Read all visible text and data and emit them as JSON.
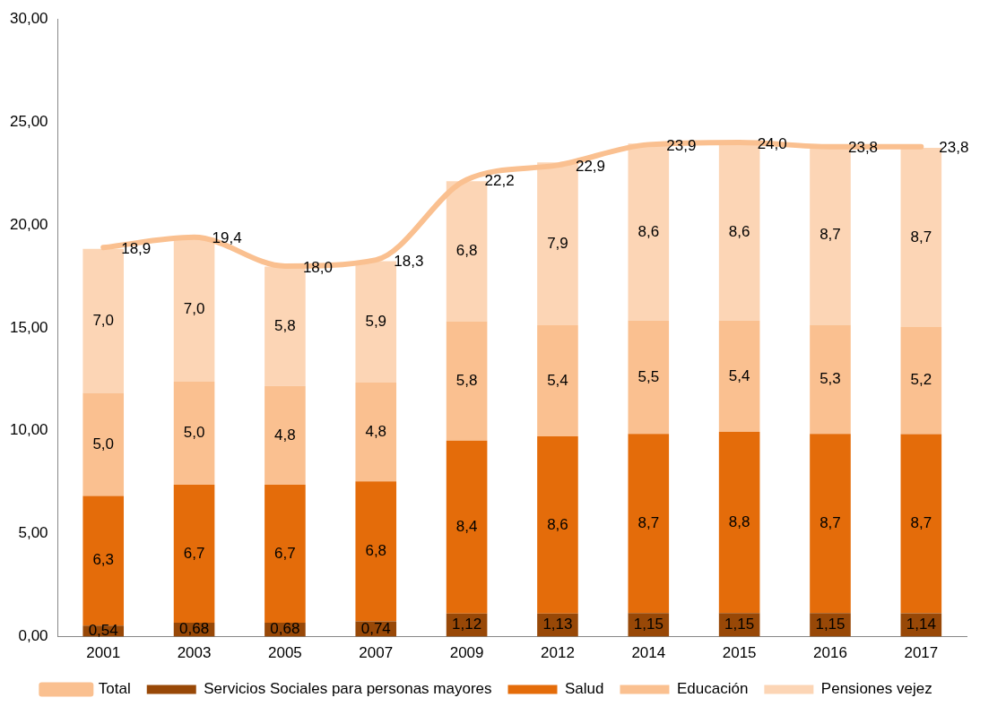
{
  "chart_data": {
    "type": "bar",
    "stacked": true,
    "categories": [
      "2001",
      "2003",
      "2005",
      "2007",
      "2009",
      "2012",
      "2014",
      "2015",
      "2016",
      "2017"
    ],
    "series": [
      {
        "name": "Servicios Sociales para personas mayores",
        "color": "#984807",
        "values": [
          0.54,
          0.68,
          0.68,
          0.74,
          1.12,
          1.13,
          1.15,
          1.15,
          1.15,
          1.14
        ],
        "value_labels": [
          "0,54",
          "0,68",
          "0,68",
          "0,74",
          "1,12",
          "1,13",
          "1,15",
          "1,15",
          "1,15",
          "1,14"
        ]
      },
      {
        "name": "Salud",
        "color": "#e46c0a",
        "values": [
          6.3,
          6.7,
          6.7,
          6.8,
          8.4,
          8.6,
          8.7,
          8.8,
          8.7,
          8.7
        ],
        "value_labels": [
          "6,3",
          "6,7",
          "6,7",
          "6,8",
          "8,4",
          "8,6",
          "8,7",
          "8,8",
          "8,7",
          "8,7"
        ]
      },
      {
        "name": "Educación",
        "color": "#fac090",
        "values": [
          5.0,
          5.0,
          4.8,
          4.8,
          5.8,
          5.4,
          5.5,
          5.4,
          5.3,
          5.2
        ],
        "value_labels": [
          "5,0",
          "5,0",
          "4,8",
          "4,8",
          "5,8",
          "5,4",
          "5,5",
          "5,4",
          "5,3",
          "5,2"
        ]
      },
      {
        "name": "Pensiones vejez",
        "color": "#fcd5b5",
        "values": [
          7.0,
          7.0,
          5.8,
          5.9,
          6.8,
          7.9,
          8.6,
          8.6,
          8.7,
          8.7
        ],
        "value_labels": [
          "7,0",
          "7,0",
          "5,8",
          "5,9",
          "6,8",
          "7,9",
          "8,6",
          "8,6",
          "8,7",
          "8,7"
        ]
      },
      {
        "name": "Total",
        "type": "line",
        "color": "#fac090",
        "marker": "none",
        "values": [
          18.9,
          19.4,
          18.0,
          18.3,
          22.2,
          22.9,
          23.9,
          24.0,
          23.8,
          23.8
        ],
        "value_labels": [
          "18,9",
          "19,4",
          "18,0",
          "18,3",
          "22,2",
          "22,9",
          "23,9",
          "24,0",
          "23,8",
          "23,8"
        ]
      }
    ],
    "ylim": [
      0,
      30
    ],
    "yticks": [
      {
        "value": 0,
        "label": "0,00"
      },
      {
        "value": 5,
        "label": "5,00"
      },
      {
        "value": 10,
        "label": "10,00"
      },
      {
        "value": 15,
        "label": "15,00"
      },
      {
        "value": 20,
        "label": "20,00"
      },
      {
        "value": 25,
        "label": "25,00"
      },
      {
        "value": 30,
        "label": "30,00"
      }
    ],
    "grid": false,
    "legend": "bottom"
  }
}
